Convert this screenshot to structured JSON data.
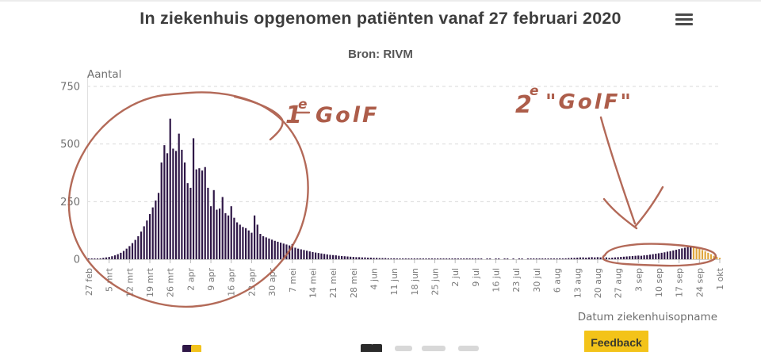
{
  "header": {
    "title": "In ziekenhuis opgenomen patiënten vanaf 27 februari 2020",
    "menu_icon": "hamburger-icon"
  },
  "subtitle": "Bron: RIVM",
  "chart_data": {
    "type": "bar",
    "title": "In ziekenhuis opgenomen patiënten vanaf 27 februari 2020",
    "source": "Bron: RIVM",
    "ylabel": "Aantal",
    "xlabel": "Datum ziekenhuisopname",
    "ylim": [
      0,
      750
    ],
    "yticks": [
      0,
      250,
      500,
      750
    ],
    "grid": "horizontal-dashed",
    "legend_position": "bottom-cut-off",
    "frequency": "daily",
    "start_date": "27 feb",
    "end_date": "1 okt",
    "x_tick_labels": [
      "27 feb",
      "5 mrt",
      "12 mrt",
      "19 mrt",
      "26 mrt",
      "2 apr",
      "9 apr",
      "16 apr",
      "23 apr",
      "30 apr",
      "7 mei",
      "14 mei",
      "21 mei",
      "28 mei",
      "4 jun",
      "11 jun",
      "18 jun",
      "25 jun",
      "2 jul",
      "9 jul",
      "16 jul",
      "23 jul",
      "30 jul",
      "6 aug",
      "13 aug",
      "20 aug",
      "27 aug",
      "3 sep",
      "10 sep",
      "17 sep",
      "24 sep",
      "1 okt"
    ],
    "bar_color": "#2f1747",
    "recent_bar_color": "#dfa53c",
    "recent_count": 10,
    "values": [
      2,
      1,
      2,
      3,
      4,
      6,
      8,
      10,
      13,
      17,
      22,
      28,
      36,
      46,
      57,
      70,
      84,
      100,
      120,
      143,
      168,
      196,
      225,
      255,
      288,
      420,
      495,
      460,
      610,
      480,
      470,
      545,
      475,
      420,
      330,
      310,
      525,
      390,
      395,
      385,
      400,
      310,
      230,
      300,
      215,
      220,
      270,
      200,
      190,
      230,
      180,
      160,
      150,
      140,
      135,
      125,
      115,
      190,
      150,
      110,
      100,
      95,
      90,
      85,
      80,
      76,
      72,
      68,
      64,
      60,
      66,
      50,
      46,
      43,
      40,
      37,
      34,
      31,
      29,
      27,
      25,
      23,
      21,
      19,
      18,
      17,
      15,
      14,
      13,
      12,
      11,
      10,
      9,
      9,
      8,
      8,
      7,
      7,
      6,
      6,
      5,
      5,
      5,
      4,
      4,
      4,
      3,
      3,
      3,
      3,
      3,
      2,
      2,
      2,
      2,
      2,
      2,
      2,
      1,
      2,
      1,
      1,
      1,
      1,
      1,
      1,
      1,
      1,
      1,
      1,
      1,
      1,
      2,
      1,
      1,
      1,
      0,
      1,
      1,
      0,
      1,
      1,
      0,
      1,
      1,
      0,
      1,
      0,
      1,
      1,
      0,
      1,
      1,
      1,
      2,
      2,
      2,
      2,
      3,
      2,
      3,
      3,
      4,
      3,
      4,
      5,
      6,
      6,
      7,
      8,
      8,
      7,
      8,
      9,
      8,
      9,
      8,
      7,
      8,
      6,
      7,
      8,
      9,
      10,
      11,
      12,
      13,
      14,
      15,
      16,
      15,
      17,
      18,
      20,
      22,
      24,
      26,
      28,
      30,
      33,
      35,
      38,
      41,
      44,
      47,
      50,
      53,
      55,
      52,
      49,
      45,
      40,
      34,
      28,
      22,
      15,
      10,
      6
    ]
  },
  "annotations": {
    "color": "#ad5d4a",
    "first_wave": {
      "num": "1",
      "sup": "e",
      "word": "GolF"
    },
    "second_wave": {
      "num": "2",
      "sup": "e",
      "word": "\"GolF\""
    }
  },
  "feedback_button": {
    "label": "Feedback",
    "bg": "#f3c319"
  }
}
